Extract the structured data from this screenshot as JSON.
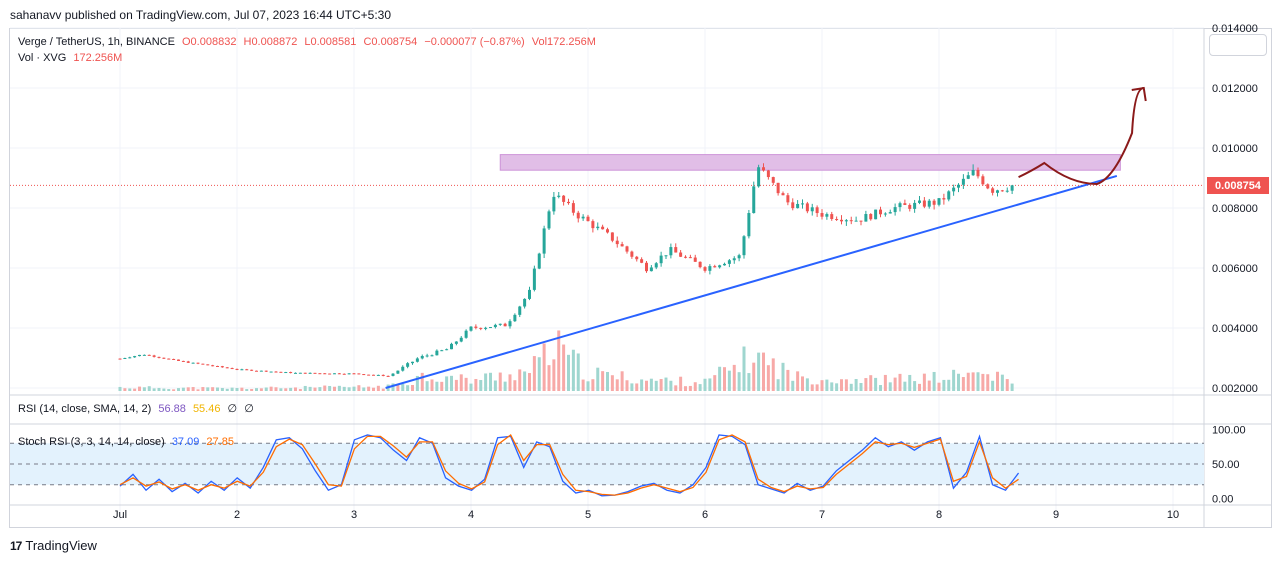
{
  "header": {
    "text": "sahanavv published on TradingView.com, Jul 07, 2023 16:44 UTC+5:30"
  },
  "legend": {
    "symbol": "Verge / TetherUS, 1h, BINANCE",
    "open": "O0.008832",
    "high": "H0.008872",
    "low": "L0.008581",
    "close": "C0.008754",
    "change": "−0.000077 (−0.87%)",
    "vol": "Vol172.256M",
    "vol_label": "Vol · XVG",
    "vol_value": "172.256M",
    "rsi_label": "RSI (14, close, SMA, 14, 2)",
    "rsi_value": "56.88",
    "rsi_sma": "55.46",
    "rsi_extra1": "∅",
    "rsi_extra2": "∅",
    "stoch_label": "Stoch RSI (3, 3, 14, 14, close)",
    "stoch_k": "37.09",
    "stoch_d": "27.85"
  },
  "price_tag": "0.008754",
  "logo_text": "TradingView",
  "colors": {
    "up": "#26a69a",
    "down": "#ef5350",
    "trendline": "#2962ff",
    "resistance_zone": "#e1bee7",
    "projection_arrow": "#8b1a1a",
    "rsi": "#7e57c2",
    "rsi_sma": "#f0b400",
    "stoch_k": "#2962ff",
    "stoch_d": "#ff6d00",
    "stoch_band": "#e3f2fd"
  },
  "chart_data": [
    {
      "type": "candlestick",
      "title": "Verge / TetherUS, 1h, BINANCE",
      "x_ticks": [
        "Jul",
        "2",
        "3",
        "4",
        "5",
        "6",
        "7",
        "8",
        "9",
        "10"
      ],
      "y_ticks": [
        "0.002000",
        "0.004000",
        "0.006000",
        "0.008000",
        "0.010000",
        "0.012000",
        "0.014000"
      ],
      "ylim": [
        0.0019,
        0.014
      ],
      "last_price": 0.008754,
      "close_path": [
        {
          "x": 0.0,
          "y": 0.00298
        },
        {
          "x": 0.2,
          "y": 0.00312
        },
        {
          "x": 0.5,
          "y": 0.0029
        },
        {
          "x": 1.0,
          "y": 0.00262
        },
        {
          "x": 1.5,
          "y": 0.0025
        },
        {
          "x": 2.0,
          "y": 0.00248
        },
        {
          "x": 2.3,
          "y": 0.0024
        },
        {
          "x": 2.55,
          "y": 0.003
        },
        {
          "x": 2.8,
          "y": 0.0033
        },
        {
          "x": 3.0,
          "y": 0.004
        },
        {
          "x": 3.3,
          "y": 0.0041
        },
        {
          "x": 3.5,
          "y": 0.0052
        },
        {
          "x": 3.7,
          "y": 0.0085
        },
        {
          "x": 3.9,
          "y": 0.0078
        },
        {
          "x": 4.2,
          "y": 0.007
        },
        {
          "x": 4.5,
          "y": 0.006
        },
        {
          "x": 4.7,
          "y": 0.0066
        },
        {
          "x": 5.0,
          "y": 0.006
        },
        {
          "x": 5.3,
          "y": 0.0064
        },
        {
          "x": 5.45,
          "y": 0.0094
        },
        {
          "x": 5.7,
          "y": 0.0082
        },
        {
          "x": 6.0,
          "y": 0.0078
        },
        {
          "x": 6.3,
          "y": 0.0076
        },
        {
          "x": 6.6,
          "y": 0.008
        },
        {
          "x": 7.0,
          "y": 0.0082
        },
        {
          "x": 7.3,
          "y": 0.0092
        },
        {
          "x": 7.45,
          "y": 0.0086
        },
        {
          "x": 7.65,
          "y": 0.00875
        }
      ],
      "resistance_zone": {
        "x_start": 3.25,
        "x_end": 8.55,
        "y_low": 0.00926,
        "y_high": 0.00978
      },
      "trendline": {
        "x1": 2.27,
        "y1": 0.002,
        "x2": 8.52,
        "y2": 0.00907
      },
      "projection_path": [
        {
          "x": 7.68,
          "y": 0.00903
        },
        {
          "x": 7.9,
          "y": 0.0095
        },
        {
          "x": 8.35,
          "y": 0.0088
        },
        {
          "x": 8.65,
          "y": 0.0105
        },
        {
          "x": 8.75,
          "y": 0.012
        }
      ]
    },
    {
      "type": "bar",
      "title": "Vol · XVG",
      "last_value": "172.256M",
      "volume_levels": [
        {
          "x": 0.0,
          "v": 0.08
        },
        {
          "x": 1.0,
          "v": 0.06
        },
        {
          "x": 2.3,
          "v": 0.1
        },
        {
          "x": 2.6,
          "v": 0.35
        },
        {
          "x": 3.0,
          "v": 0.25
        },
        {
          "x": 3.5,
          "v": 0.45
        },
        {
          "x": 3.72,
          "v": 1.0
        },
        {
          "x": 4.0,
          "v": 0.4
        },
        {
          "x": 4.5,
          "v": 0.25
        },
        {
          "x": 5.0,
          "v": 0.2
        },
        {
          "x": 5.42,
          "v": 0.8
        },
        {
          "x": 5.8,
          "v": 0.3
        },
        {
          "x": 6.5,
          "v": 0.25
        },
        {
          "x": 7.0,
          "v": 0.3
        },
        {
          "x": 7.35,
          "v": 0.4
        },
        {
          "x": 7.65,
          "v": 0.2
        }
      ]
    },
    {
      "type": "line",
      "title": "RSI (14, close, SMA, 14, 2)",
      "series": [
        {
          "name": "RSI",
          "last": 56.88
        },
        {
          "name": "SMA",
          "last": 55.46
        }
      ]
    },
    {
      "type": "line",
      "title": "Stoch RSI (3, 3, 14, 14, close)",
      "y_ticks": [
        "0.00",
        "50.00",
        "100.00"
      ],
      "ylim": [
        -5,
        105
      ],
      "bands": [
        20,
        50,
        80
      ],
      "series": [
        {
          "name": "K",
          "last": 37.09,
          "x_start": 0.0,
          "x_end": 7.68,
          "values": [
            18,
            35,
            12,
            28,
            10,
            22,
            8,
            25,
            12,
            30,
            15,
            45,
            85,
            88,
            72,
            40,
            12,
            20,
            85,
            92,
            88,
            70,
            55,
            88,
            80,
            30,
            18,
            12,
            28,
            88,
            90,
            45,
            82,
            75,
            25,
            8,
            12,
            4,
            5,
            10,
            18,
            22,
            12,
            8,
            20,
            45,
            92,
            90,
            78,
            20,
            14,
            8,
            22,
            12,
            18,
            40,
            55,
            70,
            88,
            75,
            82,
            70,
            82,
            88,
            15,
            38,
            90,
            20,
            12,
            37
          ]
        },
        {
          "name": "D",
          "last": 27.85,
          "x_start": 0.0,
          "x_end": 7.68,
          "values": [
            20,
            30,
            18,
            24,
            14,
            20,
            12,
            20,
            15,
            25,
            18,
            38,
            75,
            86,
            78,
            50,
            20,
            18,
            72,
            90,
            90,
            76,
            60,
            82,
            82,
            40,
            22,
            14,
            24,
            78,
            92,
            55,
            78,
            78,
            35,
            12,
            10,
            6,
            5,
            8,
            15,
            20,
            15,
            10,
            16,
            38,
            85,
            92,
            82,
            28,
            16,
            10,
            18,
            14,
            16,
            35,
            50,
            65,
            82,
            78,
            80,
            74,
            80,
            86,
            25,
            32,
            82,
            30,
            15,
            27.85
          ]
        }
      ]
    }
  ]
}
